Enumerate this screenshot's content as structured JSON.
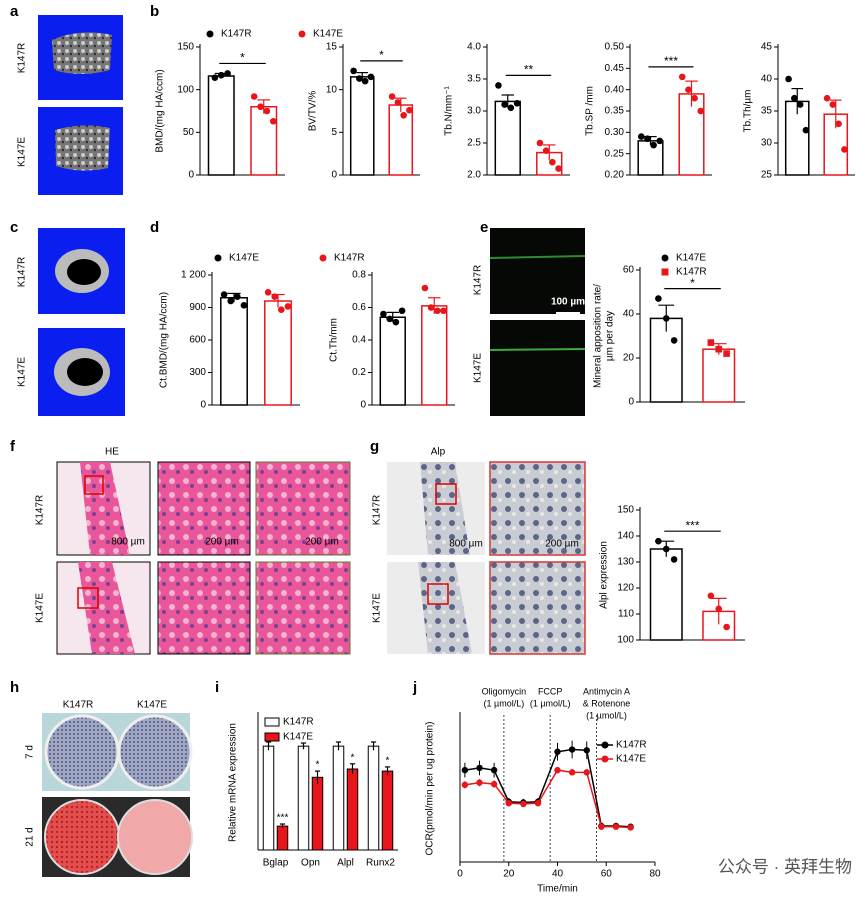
{
  "panel_labels": [
    "a",
    "b",
    "c",
    "d",
    "e",
    "f",
    "g",
    "h",
    "i",
    "j"
  ],
  "micrographs": {
    "a_rows": [
      "K147R",
      "K147E"
    ],
    "c_rows": [
      "K147R",
      "K147E"
    ],
    "e_rows": [
      "K147R",
      "K147E"
    ],
    "e_scale": "100 µm",
    "f_title": "HE",
    "f_rows": [
      "K147R",
      "K147E"
    ],
    "f_scales": [
      "800 µm",
      "200 µm",
      "200 µm"
    ],
    "g_title": "Alp",
    "g_rows": [
      "K147R",
      "K147E"
    ],
    "g_scales": [
      "800 µm",
      "200 µm"
    ],
    "h_columns": [
      "K147R",
      "K147E"
    ],
    "h_rows": [
      "7 d",
      "21 d"
    ]
  },
  "watermark": "公众号 · 英拜生物",
  "chart_data": [
    {
      "type": "bar",
      "ylabel": "BMD/(mg HA/ccm)",
      "ylim": [
        0,
        150
      ],
      "yticks": [
        0,
        50,
        100,
        150
      ],
      "bar_style": "outline",
      "legend": true,
      "significance": "*",
      "series": [
        {
          "name": "K147R",
          "color": "#000000",
          "marker": "circle",
          "values": [
            116
          ],
          "errors": [
            3
          ],
          "points": [
            [
              114,
              117,
              119
            ]
          ]
        },
        {
          "name": "K147E",
          "color": "#e8161b",
          "marker": "circle",
          "values": [
            80
          ],
          "errors": [
            8
          ],
          "points": [
            [
              92,
              80,
              75,
              63
            ]
          ]
        }
      ]
    },
    {
      "type": "bar",
      "ylabel": "BV/TV/%",
      "ylim": [
        0,
        15
      ],
      "yticks": [
        0,
        5,
        10,
        15
      ],
      "bar_style": "outline",
      "significance": "*",
      "series": [
        {
          "color": "#000000",
          "marker": "circle",
          "values": [
            11.5
          ],
          "errors": [
            0.5
          ],
          "points": [
            [
              12.2,
              11.3,
              11,
              11.5
            ]
          ]
        },
        {
          "color": "#e8161b",
          "marker": "circle",
          "values": [
            8.2
          ],
          "errors": [
            0.8
          ],
          "points": [
            [
              9.2,
              8.5,
              7,
              7.6
            ]
          ]
        }
      ]
    },
    {
      "type": "bar",
      "ylabel": "Tb.N/mm⁻¹",
      "ylim": [
        2,
        4
      ],
      "yticks": [
        {
          "value": 2,
          "label": "2.0"
        },
        {
          "value": 2.5,
          "label": "2.5"
        },
        {
          "value": 3,
          "label": "3.0"
        },
        {
          "value": 3.5,
          "label": "3.5"
        },
        {
          "value": 4,
          "label": "4.0"
        }
      ],
      "bar_style": "outline",
      "significance": "**",
      "series": [
        {
          "color": "#000000",
          "marker": "circle",
          "values": [
            3.15
          ],
          "errors": [
            0.1
          ],
          "points": [
            [
              3.4,
              3.1,
              3.05,
              3.12
            ]
          ]
        },
        {
          "color": "#e8161b",
          "marker": "circle",
          "values": [
            2.35
          ],
          "errors": [
            0.12
          ],
          "points": [
            [
              2.5,
              2.38,
              2.2,
              2.1
            ]
          ]
        }
      ]
    },
    {
      "type": "bar",
      "ylabel": "Tb.SP /mm",
      "ylim": [
        0.2,
        0.5
      ],
      "yticks": [
        {
          "value": 0.2,
          "label": "0.20"
        },
        {
          "value": 0.25,
          "label": "0.25"
        },
        {
          "value": 0.3,
          "label": "0.30"
        },
        {
          "value": 0.35,
          "label": "0.35"
        },
        {
          "value": 0.4,
          "label": "0.40"
        },
        {
          "value": 0.45,
          "label": "0.45"
        },
        {
          "value": 0.5,
          "label": "0.50"
        }
      ],
      "bar_style": "outline",
      "significance": "***",
      "series": [
        {
          "color": "#000000",
          "marker": "circle",
          "values": [
            0.28
          ],
          "errors": [
            0.01
          ],
          "points": [
            [
              0.29,
              0.285,
              0.27,
              0.28
            ]
          ]
        },
        {
          "color": "#e8161b",
          "marker": "circle",
          "values": [
            0.39
          ],
          "errors": [
            0.03
          ],
          "points": [
            [
              0.43,
              0.4,
              0.38,
              0.35
            ]
          ]
        }
      ]
    },
    {
      "type": "bar",
      "ylabel": "Tb.Th/µm",
      "ylim": [
        25,
        45
      ],
      "yticks": [
        25,
        30,
        35,
        40,
        45
      ],
      "bar_style": "outline",
      "series": [
        {
          "color": "#000000",
          "marker": "circle",
          "values": [
            36.5
          ],
          "errors": [
            2
          ],
          "points": [
            [
              40,
              37,
              36,
              32
            ]
          ]
        },
        {
          "color": "#e8161b",
          "marker": "circle",
          "values": [
            34.5
          ],
          "errors": [
            2.2
          ],
          "points": [
            [
              37,
              36,
              33,
              29
            ]
          ]
        }
      ]
    },
    {
      "type": "bar",
      "ylabel": "Ct.BMD/(mg HA/ccm)",
      "ylim": [
        0,
        1200
      ],
      "yticks": [
        0,
        300,
        600,
        900,
        {
          "value": 1200,
          "label": "1 200"
        }
      ],
      "bar_style": "outline",
      "legend": true,
      "series": [
        {
          "name": "K147E",
          "color": "#000000",
          "marker": "circle",
          "values": [
            990
          ],
          "errors": [
            40
          ],
          "points": [
            [
              1020,
              960,
              1000,
              920
            ]
          ]
        },
        {
          "name": "K147R",
          "color": "#e8161b",
          "marker": "circle",
          "values": [
            960
          ],
          "errors": [
            60
          ],
          "points": [
            [
              1040,
              1000,
              880,
              910
            ]
          ]
        }
      ]
    },
    {
      "type": "bar",
      "ylabel": "Ct.Th/mm",
      "ylim": [
        0,
        0.8
      ],
      "yticks": [
        0,
        0.2,
        0.4,
        0.6,
        0.8
      ],
      "bar_style": "outline",
      "series": [
        {
          "color": "#000000",
          "marker": "circle",
          "values": [
            0.54
          ],
          "errors": [
            0.03
          ],
          "points": [
            [
              0.56,
              0.53,
              0.51,
              0.58
            ]
          ]
        },
        {
          "color": "#e8161b",
          "marker": "circle",
          "values": [
            0.61
          ],
          "errors": [
            0.05
          ],
          "points": [
            [
              0.72,
              0.6,
              0.58,
              0.58
            ]
          ]
        }
      ]
    },
    {
      "type": "bar",
      "ylabel": [
        "Mineral apposition rate/",
        "µm per day"
      ],
      "ylim": [
        0,
        60
      ],
      "yticks": [
        0,
        20,
        40,
        60
      ],
      "bar_style": "outline",
      "legend": true,
      "significance": "*",
      "series": [
        {
          "name": "K147E",
          "color": "#000000",
          "marker": "circle",
          "values": [
            38
          ],
          "errors": [
            6
          ],
          "points": [
            [
              47,
              38,
              28
            ]
          ]
        },
        {
          "name": "K147R",
          "color": "#e8161b",
          "marker": "square",
          "values": [
            24
          ],
          "errors": [
            2.5
          ],
          "points": [
            [
              27,
              24,
              22
            ]
          ]
        }
      ]
    },
    {
      "type": "bar",
      "ylabel": "Alpl expression",
      "ylim": [
        100,
        150
      ],
      "yticks": [
        100,
        110,
        120,
        130,
        140,
        150
      ],
      "bar_style": "outline",
      "significance": "***",
      "series": [
        {
          "color": "#000000",
          "marker": "circle",
          "values": [
            135
          ],
          "errors": [
            3
          ],
          "points": [
            [
              138,
              135,
              131
            ]
          ]
        },
        {
          "color": "#e8161b",
          "marker": "circle",
          "values": [
            111
          ],
          "errors": [
            5
          ],
          "points": [
            [
              117,
              112,
              105
            ]
          ]
        }
      ]
    },
    {
      "type": "bar",
      "ylabel": "Relative mRNA expression",
      "ylim": [
        0,
        1.3
      ],
      "bar_style": "filled",
      "legend": true,
      "categories": [
        "Bglap",
        "Opn",
        "Alpl",
        "Runx2"
      ],
      "significance": [
        "***",
        "*",
        "*",
        "*"
      ],
      "series": [
        {
          "name": "K147R",
          "color": "#ffffff",
          "marker": "square",
          "values": [
            1,
            1,
            1,
            1
          ],
          "errors": [
            0.04,
            0.03,
            0.04,
            0.04
          ]
        },
        {
          "name": "K147E",
          "color": "#e8161b",
          "marker": "square",
          "values": [
            0.23,
            0.7,
            0.78,
            0.76
          ],
          "errors": [
            0.02,
            0.06,
            0.05,
            0.04
          ]
        }
      ]
    },
    {
      "type": "line",
      "ylabel": "OCR(pmol/min per ug protein)",
      "xlabel": "Time/min",
      "legend": true,
      "x": [
        2,
        8,
        14,
        20,
        26,
        32,
        40,
        46,
        52,
        58,
        64,
        70
      ],
      "xlim": [
        0,
        80
      ],
      "xticks": [
        0,
        20,
        40,
        60,
        80
      ],
      "ylim": [
        0,
        20
      ],
      "injections": [
        {
          "x": 18,
          "label": [
            "Oligomycin",
            "(1 µmol/L)"
          ]
        },
        {
          "x": 37,
          "label": [
            "FCCP",
            "(1 µmol/L)"
          ]
        },
        {
          "x": 56,
          "label": [
            "Antimycin A",
            "& Rotenone",
            "(1 µmol/L)"
          ]
        }
      ],
      "series": [
        {
          "name": "K147R",
          "color": "#000000",
          "values": [
            12.5,
            12.8,
            12.5,
            8.2,
            8.1,
            8.2,
            15,
            15.3,
            15.2,
            4.9,
            4.9,
            4.8
          ],
          "errors": [
            1,
            1,
            1,
            0.5,
            0.5,
            0.5,
            1.2,
            1.2,
            1.2,
            0.3,
            0.3,
            0.3
          ]
        },
        {
          "name": "K147E",
          "color": "#e8161b",
          "values": [
            10.5,
            10.8,
            10.6,
            8,
            7.9,
            8,
            12.5,
            12.2,
            12.2,
            4.8,
            4.8,
            4.7
          ],
          "errors": [
            0.5,
            0.5,
            0.5,
            0.4,
            0.4,
            0.4,
            0.4,
            0.4,
            0.4,
            0.2,
            0.2,
            0.2
          ]
        }
      ]
    }
  ]
}
